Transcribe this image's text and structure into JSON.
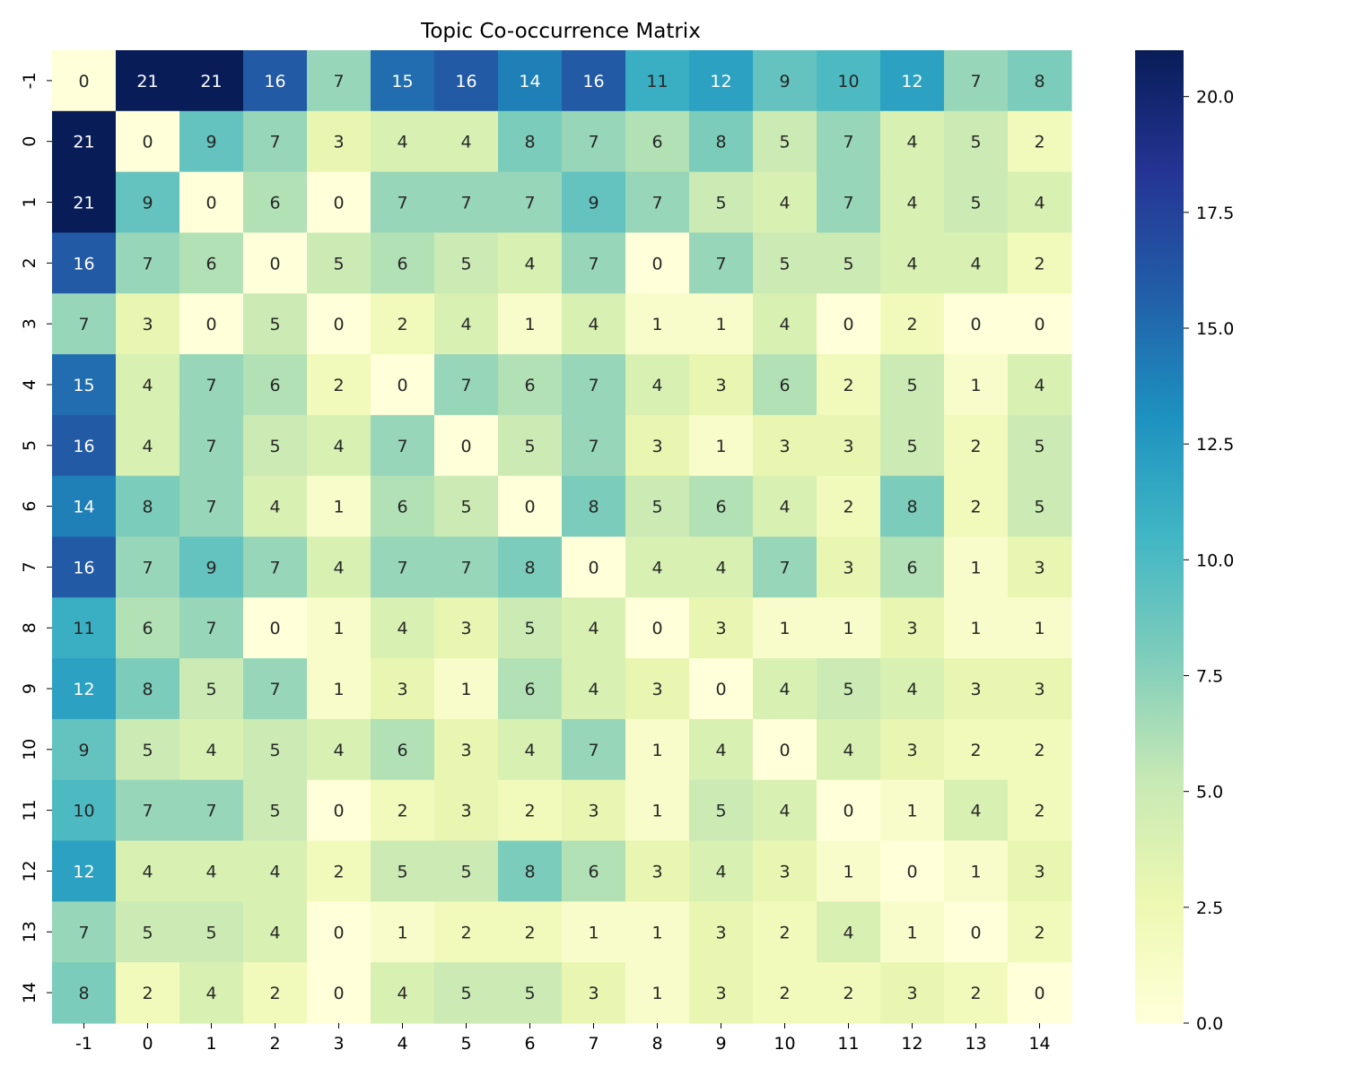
{
  "chart_data": {
    "type": "heatmap",
    "title": "Topic Co-occurrence Matrix",
    "xlabel": "",
    "ylabel": "",
    "x_categories": [
      "-1",
      "0",
      "1",
      "2",
      "3",
      "4",
      "5",
      "6",
      "7",
      "8",
      "9",
      "10",
      "11",
      "12",
      "13",
      "14"
    ],
    "y_categories": [
      "-1",
      "0",
      "1",
      "2",
      "3",
      "4",
      "5",
      "6",
      "7",
      "8",
      "9",
      "10",
      "11",
      "12",
      "13",
      "14"
    ],
    "values": [
      [
        0,
        21,
        21,
        16,
        7,
        15,
        16,
        14,
        16,
        11,
        12,
        9,
        10,
        12,
        7,
        8
      ],
      [
        21,
        0,
        9,
        7,
        3,
        4,
        4,
        8,
        7,
        6,
        8,
        5,
        7,
        4,
        5,
        2
      ],
      [
        21,
        9,
        0,
        6,
        0,
        7,
        7,
        7,
        9,
        7,
        5,
        4,
        7,
        4,
        5,
        4
      ],
      [
        16,
        7,
        6,
        0,
        5,
        6,
        5,
        4,
        7,
        0,
        7,
        5,
        5,
        4,
        4,
        2
      ],
      [
        7,
        3,
        0,
        5,
        0,
        2,
        4,
        1,
        4,
        1,
        1,
        4,
        0,
        2,
        0,
        0
      ],
      [
        15,
        4,
        7,
        6,
        2,
        0,
        7,
        6,
        7,
        4,
        3,
        6,
        2,
        5,
        1,
        4
      ],
      [
        16,
        4,
        7,
        5,
        4,
        7,
        0,
        5,
        7,
        3,
        1,
        3,
        3,
        5,
        2,
        5
      ],
      [
        14,
        8,
        7,
        4,
        1,
        6,
        5,
        0,
        8,
        5,
        6,
        4,
        2,
        8,
        2,
        5
      ],
      [
        16,
        7,
        9,
        7,
        4,
        7,
        7,
        8,
        0,
        4,
        4,
        7,
        3,
        6,
        1,
        3
      ],
      [
        11,
        6,
        7,
        0,
        1,
        4,
        3,
        5,
        4,
        0,
        3,
        1,
        1,
        3,
        1,
        1
      ],
      [
        12,
        8,
        5,
        7,
        1,
        3,
        1,
        6,
        4,
        3,
        0,
        4,
        5,
        4,
        3,
        3
      ],
      [
        9,
        5,
        4,
        5,
        4,
        6,
        3,
        4,
        7,
        1,
        4,
        0,
        4,
        3,
        2,
        2
      ],
      [
        10,
        7,
        7,
        5,
        0,
        2,
        3,
        2,
        3,
        1,
        5,
        4,
        0,
        1,
        4,
        2
      ],
      [
        12,
        4,
        4,
        4,
        2,
        5,
        5,
        8,
        6,
        3,
        4,
        3,
        1,
        0,
        1,
        3
      ],
      [
        7,
        5,
        5,
        4,
        0,
        1,
        2,
        2,
        1,
        1,
        3,
        2,
        4,
        1,
        0,
        2
      ],
      [
        8,
        2,
        4,
        2,
        0,
        4,
        5,
        5,
        3,
        1,
        3,
        2,
        2,
        3,
        2,
        0
      ]
    ],
    "vmin": 0,
    "vmax": 21,
    "colormap": "YlGnBu",
    "colorbar_ticks": [
      "0.0",
      "2.5",
      "5.0",
      "7.5",
      "10.0",
      "12.5",
      "15.0",
      "17.5",
      "20.0"
    ],
    "colorbar_tick_values": [
      0,
      2.5,
      5,
      7.5,
      10,
      12.5,
      15,
      17.5,
      20
    ],
    "annotate": true,
    "grid": false
  },
  "colors": {
    "ylgnbu_stops": [
      "#ffffd9",
      "#edf8b1",
      "#c7e9b4",
      "#7fcdbb",
      "#41b6c4",
      "#1d91c0",
      "#225ea8",
      "#253494",
      "#081d58"
    ],
    "label_light": "#ffffff",
    "label_dark": "#262626"
  }
}
